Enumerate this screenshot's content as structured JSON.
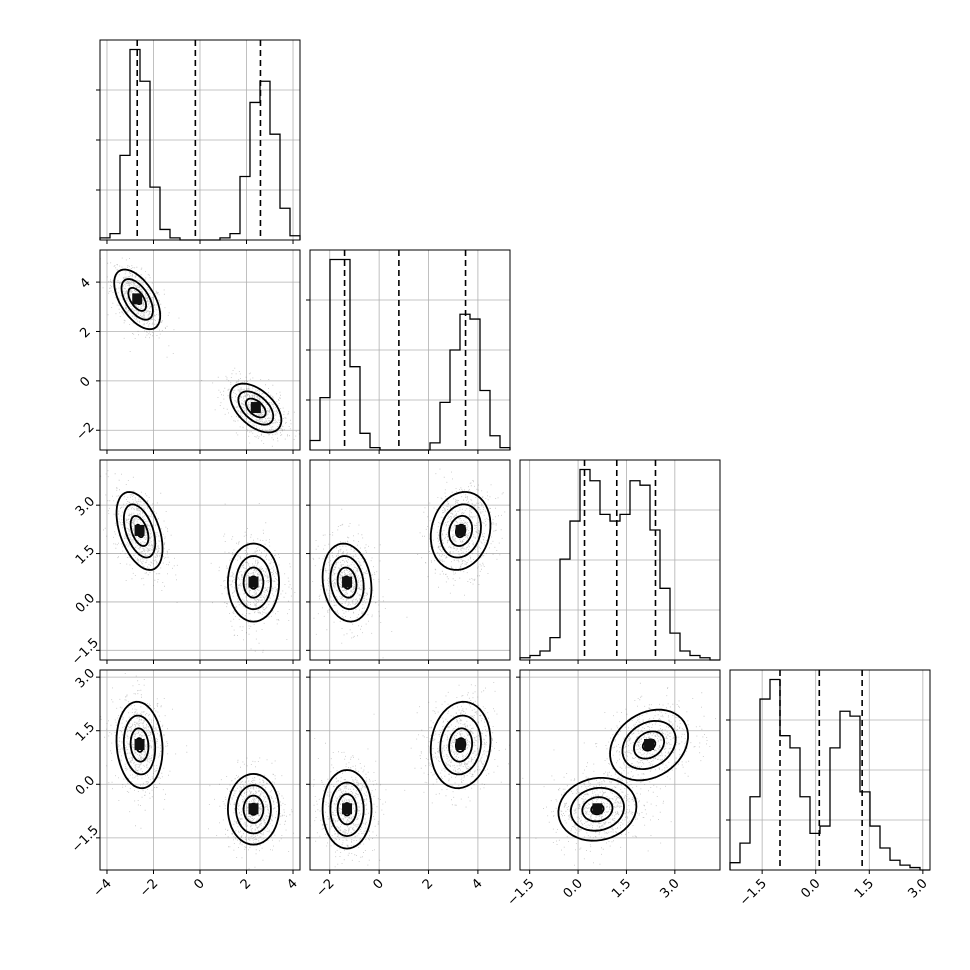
{
  "chart_data": {
    "type": "corner",
    "n_params": 4,
    "grid": true,
    "params": [
      {
        "lim": [
          -4.3,
          4.3
        ],
        "ticks": [
          -4,
          -2,
          0,
          2,
          4
        ],
        "tick_labels": [
          "−4",
          "−2",
          "0",
          "2",
          "4"
        ],
        "quantiles": [
          -2.7,
          -0.2,
          2.6
        ],
        "hist": {
          "edges_start": -4.3,
          "bin_width": 0.43,
          "values": [
            0.01,
            0.03,
            0.4,
            0.9,
            0.75,
            0.25,
            0.05,
            0.01,
            0,
            0,
            0,
            0,
            0.01,
            0.03,
            0.3,
            0.65,
            0.75,
            0.5,
            0.15,
            0.02
          ]
        }
      },
      {
        "lim": [
          -2.8,
          5.3
        ],
        "ticks": [
          -2,
          0,
          2,
          4
        ],
        "tick_labels": [
          "−2",
          "0",
          "2",
          "4"
        ],
        "quantiles": [
          -1.4,
          0.8,
          3.5
        ],
        "hist": {
          "edges_start": -2.8,
          "bin_width": 0.405,
          "values": [
            0.04,
            0.22,
            0.8,
            0.8,
            0.35,
            0.07,
            0.01,
            0,
            0,
            0,
            0,
            0,
            0.03,
            0.2,
            0.42,
            0.57,
            0.55,
            0.25,
            0.06,
            0.01
          ]
        }
      },
      {
        "lim": [
          -1.8,
          4.4
        ],
        "ticks": [
          -1.5,
          0,
          1.5,
          3
        ],
        "tick_labels": [
          "−1.5",
          "0.0",
          "1.5",
          "3.0"
        ],
        "quantiles": [
          0.2,
          1.2,
          2.4
        ],
        "hist": {
          "edges_start": -1.8,
          "bin_width": 0.31,
          "values": [
            0.01,
            0.02,
            0.04,
            0.1,
            0.45,
            0.62,
            0.85,
            0.8,
            0.65,
            0.62,
            0.65,
            0.8,
            0.78,
            0.58,
            0.32,
            0.12,
            0.04,
            0.02,
            0.01,
            0
          ]
        }
      },
      {
        "lim": [
          -2.4,
          3.2
        ],
        "ticks": [
          -1.5,
          0,
          1.5,
          3
        ],
        "tick_labels": [
          "−1.5",
          "0.0",
          "1.5",
          "3.0"
        ],
        "quantiles": [
          -1.0,
          0.1,
          1.3
        ],
        "hist": {
          "edges_start": -2.4,
          "bin_width": 0.28,
          "values": [
            0.03,
            0.11,
            0.3,
            0.7,
            0.78,
            0.55,
            0.5,
            0.3,
            0.15,
            0.18,
            0.5,
            0.65,
            0.63,
            0.32,
            0.18,
            0.09,
            0.04,
            0.02,
            0.01,
            0
          ]
        }
      }
    ],
    "panels_2d": [
      {
        "row": 1,
        "col": 0,
        "blobs": [
          {
            "cx": -2.7,
            "cy": 3.3,
            "sx": 0.45,
            "sy": 0.55,
            "rho": -0.55,
            "w": 0.5
          },
          {
            "cx": 2.4,
            "cy": -1.1,
            "sx": 0.5,
            "sy": 0.45,
            "rho": -0.5,
            "w": 0.5
          }
        ]
      },
      {
        "row": 2,
        "col": 0,
        "blobs": [
          {
            "cx": -2.6,
            "cy": 2.2,
            "sx": 0.45,
            "sy": 0.55,
            "rho": -0.45,
            "w": 0.5
          },
          {
            "cx": 2.3,
            "cy": 0.6,
            "sx": 0.5,
            "sy": 0.55,
            "rho": 0.0,
            "w": 0.5
          }
        ]
      },
      {
        "row": 2,
        "col": 1,
        "blobs": [
          {
            "cx": -1.3,
            "cy": 0.6,
            "sx": 0.45,
            "sy": 0.55,
            "rho": -0.15,
            "w": 0.5
          },
          {
            "cx": 3.3,
            "cy": 2.2,
            "sx": 0.55,
            "sy": 0.55,
            "rho": 0.15,
            "w": 0.5
          }
        ]
      },
      {
        "row": 3,
        "col": 0,
        "blobs": [
          {
            "cx": -2.6,
            "cy": 1.1,
            "sx": 0.45,
            "sy": 0.55,
            "rho": -0.1,
            "w": 0.5
          },
          {
            "cx": 2.3,
            "cy": -0.7,
            "sx": 0.5,
            "sy": 0.45,
            "rho": 0.0,
            "w": 0.5
          }
        ]
      },
      {
        "row": 3,
        "col": 1,
        "blobs": [
          {
            "cx": -1.3,
            "cy": -0.7,
            "sx": 0.45,
            "sy": 0.5,
            "rho": 0.0,
            "w": 0.5
          },
          {
            "cx": 3.3,
            "cy": 1.1,
            "sx": 0.55,
            "sy": 0.55,
            "rho": 0.1,
            "w": 0.5
          }
        ]
      },
      {
        "row": 3,
        "col": 2,
        "blobs": [
          {
            "cx": 0.6,
            "cy": -0.7,
            "sx": 0.55,
            "sy": 0.4,
            "rho": 0.1,
            "w": 0.5
          },
          {
            "cx": 2.2,
            "cy": 1.1,
            "sx": 0.55,
            "sy": 0.45,
            "rho": 0.25,
            "w": 0.5
          }
        ]
      }
    ]
  }
}
